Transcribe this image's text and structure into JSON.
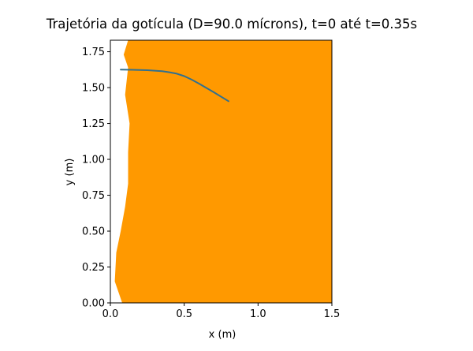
{
  "chart_data": {
    "type": "line",
    "title": "Trajetória da gotícula (D=90.0 mícrons), t=0 até t=0.35s",
    "xlabel": "x (m)",
    "ylabel": "y (m)",
    "xlim": [
      0.0,
      1.5
    ],
    "ylim": [
      0.0,
      1.83
    ],
    "x_ticks": [
      0.0,
      0.5,
      1.0,
      1.5
    ],
    "x_tick_labels": [
      "0.0",
      "0.5",
      "1.0",
      "1.5"
    ],
    "y_ticks": [
      0.0,
      0.25,
      0.5,
      0.75,
      1.0,
      1.25,
      1.5,
      1.75
    ],
    "y_tick_labels": [
      "0.00",
      "0.25",
      "0.50",
      "0.75",
      "1.00",
      "1.25",
      "1.50",
      "1.75"
    ],
    "grid": false,
    "legend": "none",
    "filled_region": {
      "color": "#ff9900",
      "left_boundary": [
        [
          0.08,
          0.0
        ],
        [
          0.03,
          0.15
        ],
        [
          0.04,
          0.35
        ],
        [
          0.07,
          0.5
        ],
        [
          0.1,
          0.67
        ],
        [
          0.12,
          0.83
        ],
        [
          0.12,
          1.05
        ],
        [
          0.13,
          1.25
        ],
        [
          0.1,
          1.45
        ],
        [
          0.12,
          1.64
        ],
        [
          0.09,
          1.73
        ],
        [
          0.12,
          1.83
        ]
      ],
      "right_edge_x": 1.5
    },
    "series": [
      {
        "color": "#31708f",
        "x": [
          0.07,
          0.15,
          0.25,
          0.35,
          0.4,
          0.45,
          0.5,
          0.55,
          0.6,
          0.7,
          0.8
        ],
        "y": [
          1.625,
          1.624,
          1.621,
          1.614,
          1.607,
          1.597,
          1.58,
          1.556,
          1.528,
          1.468,
          1.405
        ]
      }
    ]
  }
}
